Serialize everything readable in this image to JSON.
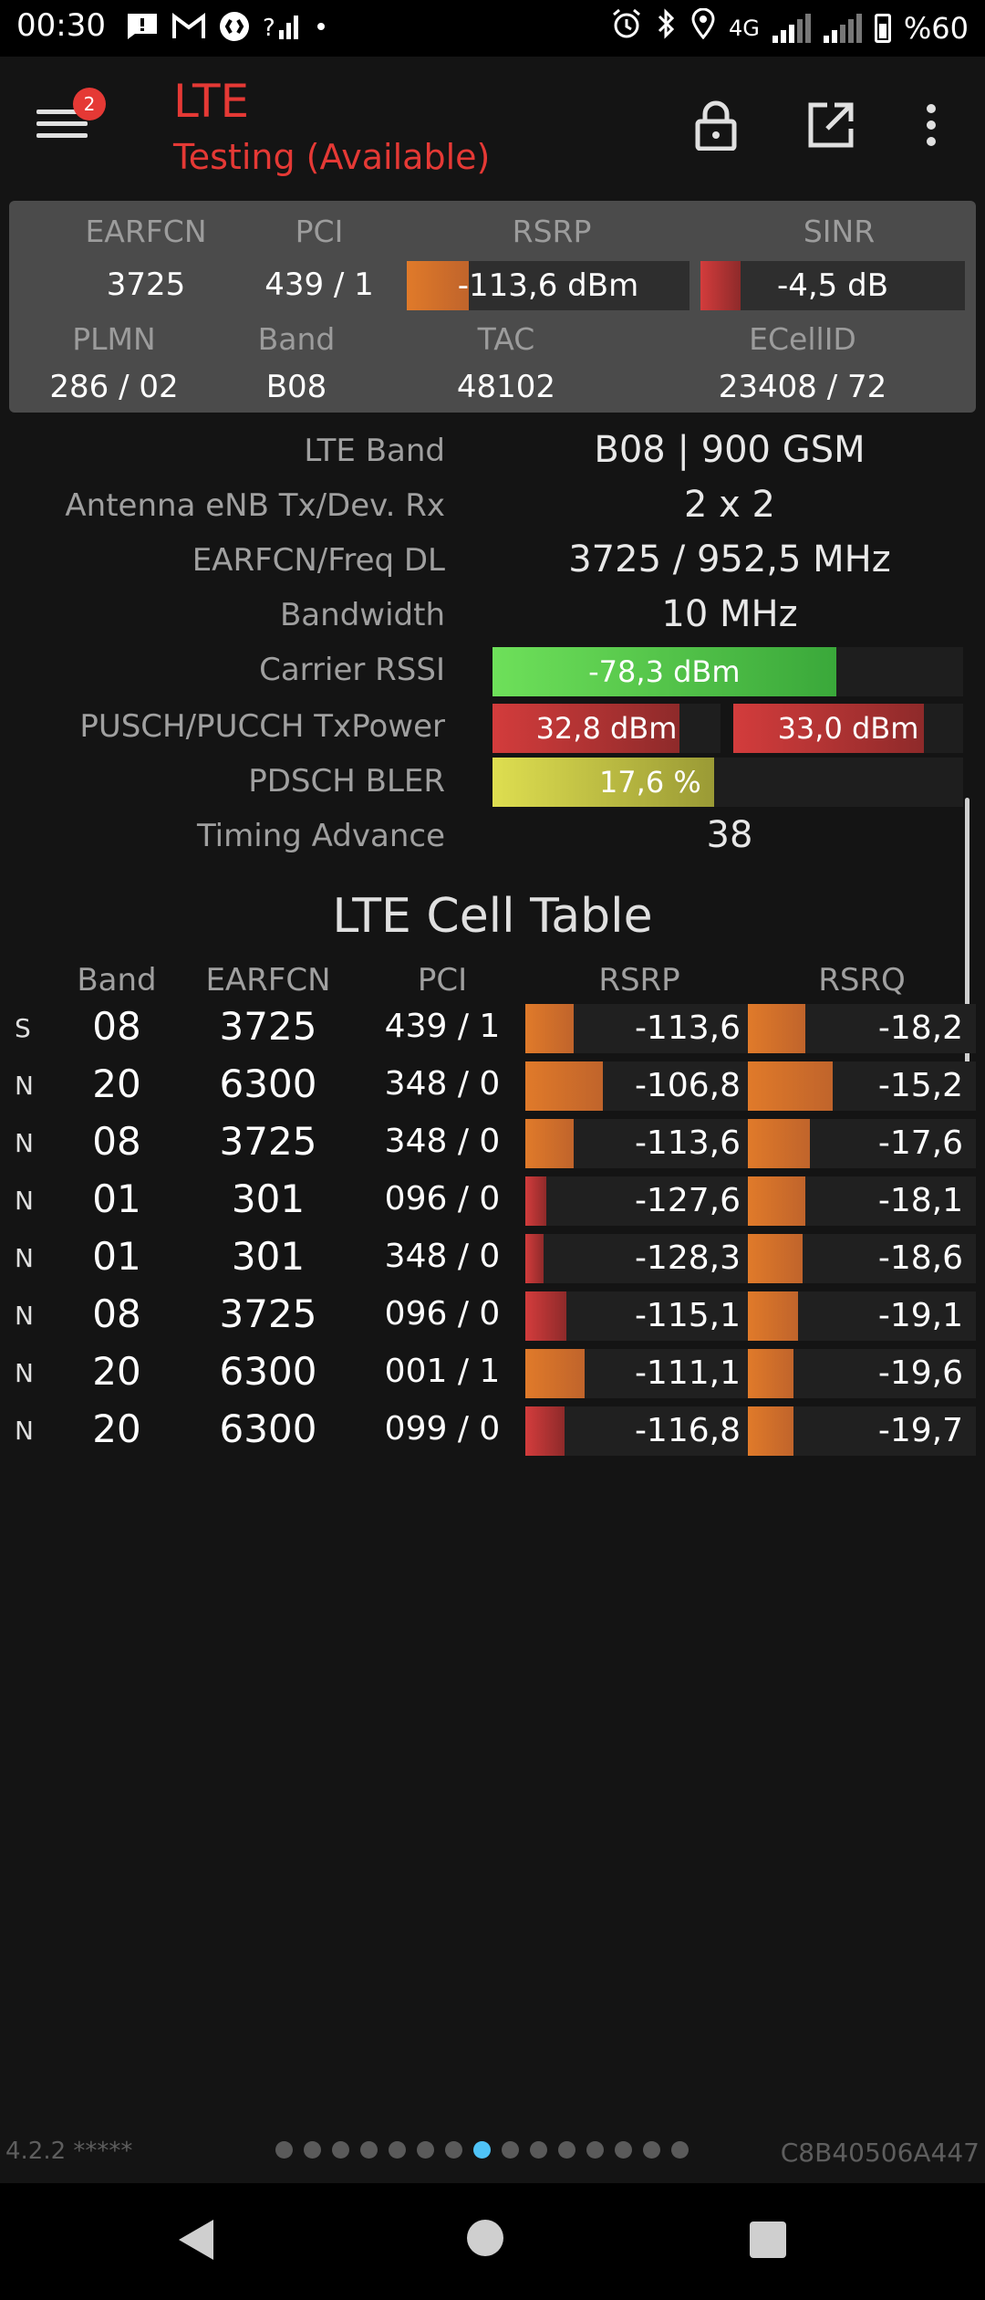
{
  "status_bar": {
    "time": "00:30",
    "network_label": "4G",
    "battery": "%60",
    "icons": [
      "sms-icon",
      "gmail-icon",
      "shazam-icon",
      "signal-question-icon",
      "dot-icon",
      "alarm-icon",
      "bluetooth-icon",
      "location-icon",
      "signal-icon",
      "signal-icon-2",
      "battery-icon"
    ]
  },
  "app_bar": {
    "badge": "2",
    "title": "LTE",
    "subtitle": "Testing (Available)",
    "colors": {
      "title": "#e53935"
    }
  },
  "summary": {
    "earfcn_label": "EARFCN",
    "earfcn": "3725",
    "pci_label": "PCI",
    "pci": "439 / 1",
    "rsrp_label": "RSRP",
    "rsrp": "-113,6 dBm",
    "rsrp_fill": 0.22,
    "sinr_label": "SINR",
    "sinr": "-4,5 dB",
    "sinr_fill": 0.15,
    "plmn_label": "PLMN",
    "plmn": "286 / 02",
    "band_label": "Band",
    "band": "B08",
    "tac_label": "TAC",
    "tac": "48102",
    "ecellid_label": "ECellID",
    "ecellid": "23408 / 72"
  },
  "details": {
    "lte_band_label": "LTE Band",
    "lte_band": "B08 | 900 GSM",
    "antenna_label": "Antenna eNB Tx/Dev. Rx",
    "antenna": "2 x 2",
    "earfcn_freq_label": "EARFCN/Freq DL",
    "earfcn_freq": "3725 / 952,5 MHz",
    "bandwidth_label": "Bandwidth",
    "bandwidth": "10 MHz",
    "rssi_label": "Carrier RSSI",
    "rssi": "-78,3 dBm",
    "rssi_fill": 0.73,
    "txpower_label": "PUSCH/PUCCH TxPower",
    "pusch": "32,8 dBm",
    "pusch_fill": 0.82,
    "pucch": "33,0 dBm",
    "pucch_fill": 0.83,
    "bler_label": "PDSCH BLER",
    "bler": "17,6 %",
    "bler_fill": 0.47,
    "timing_label": "Timing Advance",
    "timing": "38"
  },
  "cell_table": {
    "title": "LTE Cell Table",
    "headers": {
      "band": "Band",
      "earfcn": "EARFCN",
      "pci": "PCI",
      "rsrp": "RSRP",
      "rsrq": "RSRQ"
    },
    "rows": [
      {
        "type": "S",
        "band": "08",
        "earfcn": "3725",
        "pci": "439 / 1",
        "rsrp": "-113,6",
        "rsrp_fill": 0.21,
        "rsrp_color": "orange",
        "rsrq": "-18,2",
        "rsrq_fill": 0.25
      },
      {
        "type": "N",
        "band": "20",
        "earfcn": "6300",
        "pci": "348 / 0",
        "rsrp": "-106,8",
        "rsrp_fill": 0.34,
        "rsrp_color": "orange",
        "rsrq": "-15,2",
        "rsrq_fill": 0.37
      },
      {
        "type": "N",
        "band": "08",
        "earfcn": "3725",
        "pci": "348 / 0",
        "rsrp": "-113,6",
        "rsrp_fill": 0.21,
        "rsrp_color": "orange",
        "rsrq": "-17,6",
        "rsrq_fill": 0.27
      },
      {
        "type": "N",
        "band": "01",
        "earfcn": "301",
        "pci": "096 / 0",
        "rsrp": "-127,6",
        "rsrp_fill": 0.09,
        "rsrp_color": "red",
        "rsrq": "-18,1",
        "rsrq_fill": 0.25
      },
      {
        "type": "N",
        "band": "01",
        "earfcn": "301",
        "pci": "348 / 0",
        "rsrp": "-128,3",
        "rsrp_fill": 0.08,
        "rsrp_color": "red",
        "rsrq": "-18,6",
        "rsrq_fill": 0.24
      },
      {
        "type": "N",
        "band": "08",
        "earfcn": "3725",
        "pci": "096 / 0",
        "rsrp": "-115,1",
        "rsrp_fill": 0.18,
        "rsrp_color": "red",
        "rsrq": "-19,1",
        "rsrq_fill": 0.22
      },
      {
        "type": "N",
        "band": "20",
        "earfcn": "6300",
        "pci": "001 / 1",
        "rsrp": "-111,1",
        "rsrp_fill": 0.26,
        "rsrp_color": "orange",
        "rsrq": "-19,6",
        "rsrq_fill": 0.2
      },
      {
        "type": "N",
        "band": "20",
        "earfcn": "6300",
        "pci": "099 / 0",
        "rsrp": "-116,8",
        "rsrp_fill": 0.17,
        "rsrp_color": "red",
        "rsrq": "-19,7",
        "rsrq_fill": 0.2
      }
    ]
  },
  "footer": {
    "version": "4.2.2 *****",
    "device_id": "C8B40506A447",
    "page_count": 15,
    "active_page": 7
  },
  "nav_bar": {
    "icons": [
      "back-icon",
      "home-icon",
      "recents-icon"
    ]
  }
}
